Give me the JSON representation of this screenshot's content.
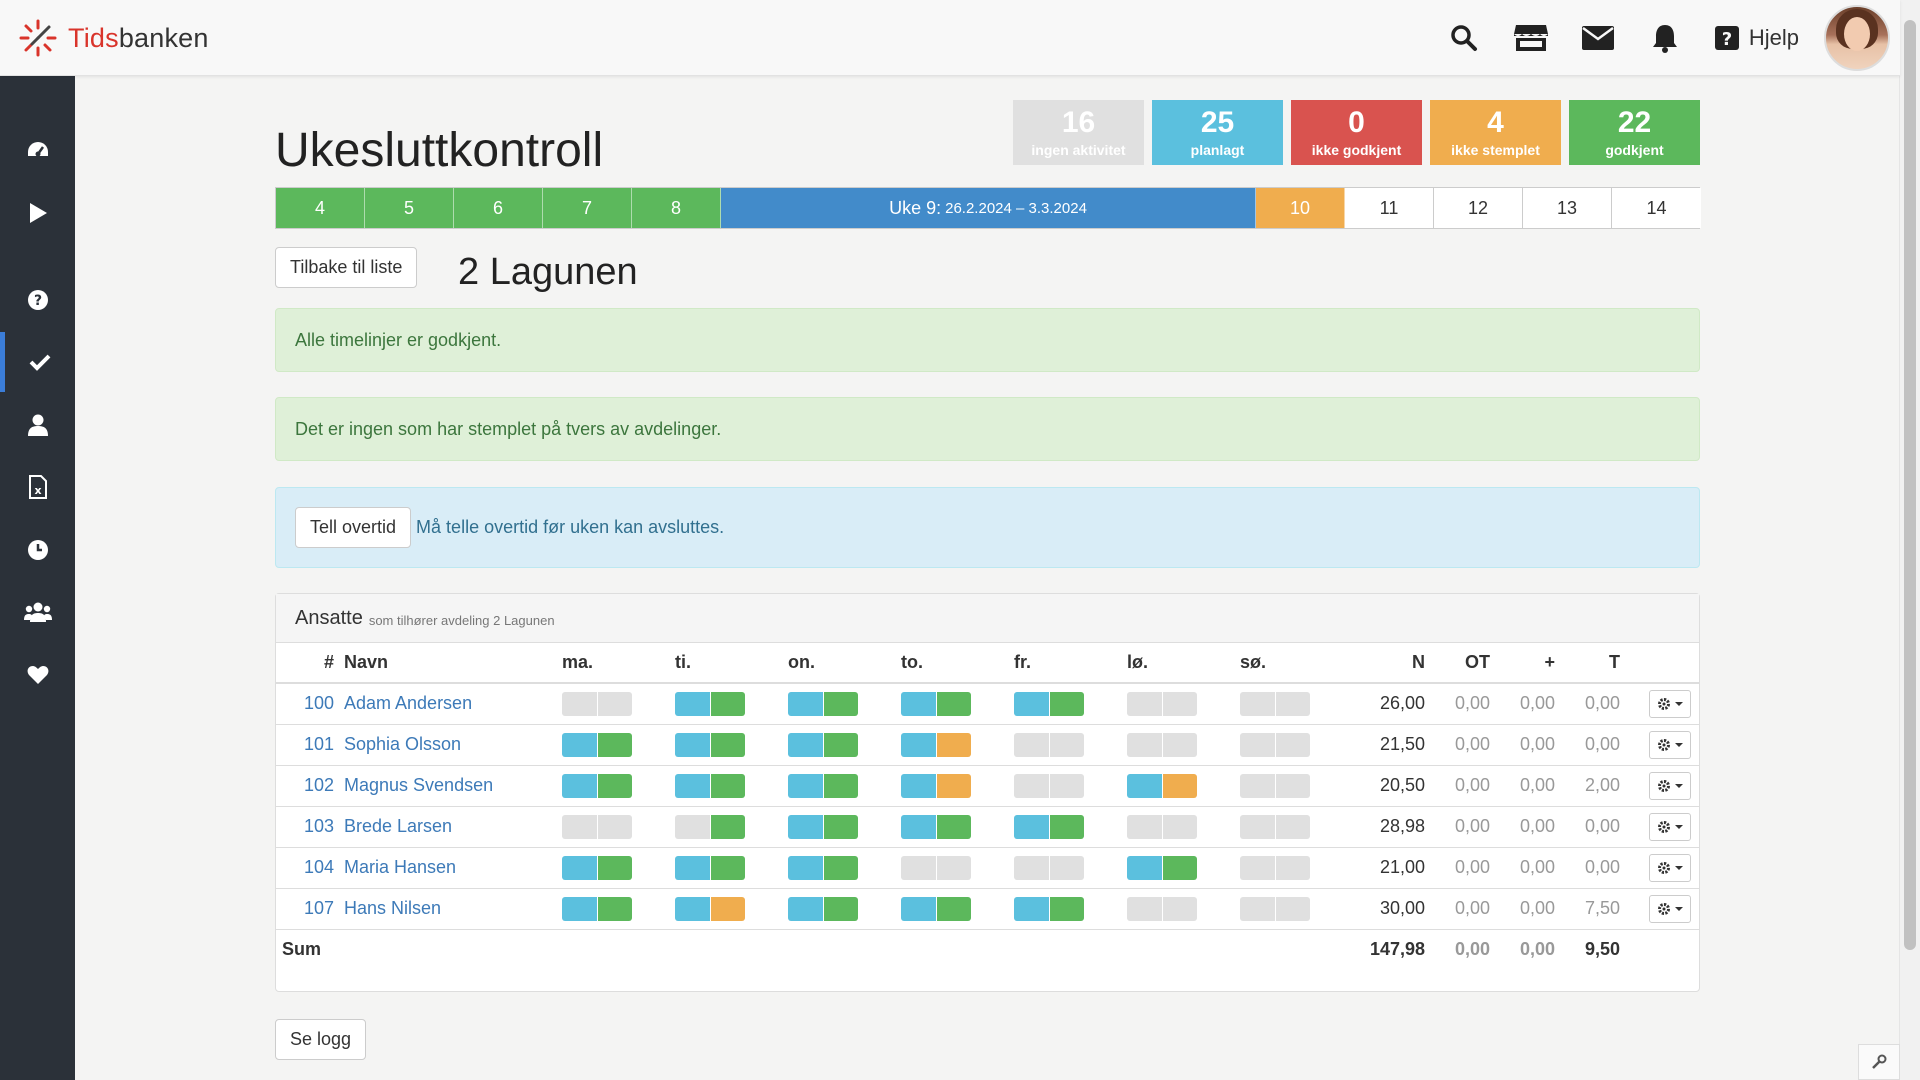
{
  "header": {
    "logo_part1": "Tids",
    "logo_part2": "banken",
    "help_label": "Hjelp",
    "icons": [
      "search-icon",
      "store-icon",
      "mail-icon",
      "bell-icon",
      "question-icon"
    ]
  },
  "sidebar": {
    "items": [
      {
        "name": "dashboard-icon"
      },
      {
        "name": "play-icon"
      },
      {
        "name": "help-circle-icon"
      },
      {
        "name": "check-icon",
        "active": true
      },
      {
        "name": "user-icon"
      },
      {
        "name": "excel-file-icon"
      },
      {
        "name": "clock-icon"
      },
      {
        "name": "users-icon"
      },
      {
        "name": "heart-icon"
      }
    ]
  },
  "page": {
    "title": "Ukesluttkontroll",
    "department": "2 Lagunen",
    "back_button": "Tilbake til liste",
    "log_button": "Se logg"
  },
  "stats": [
    {
      "value": "16",
      "label": "ingen aktivitet",
      "color": "#e0e0e0"
    },
    {
      "value": "25",
      "label": "planlagt",
      "color": "#5bc0de"
    },
    {
      "value": "0",
      "label": "ikke godkjent",
      "color": "#d9534f"
    },
    {
      "value": "4",
      "label": "ikke stemplet",
      "color": "#f0ad4e"
    },
    {
      "value": "22",
      "label": "godkjent",
      "color": "#5cb85c"
    }
  ],
  "weeks": {
    "before": [
      "4",
      "5",
      "6",
      "7",
      "8"
    ],
    "current_label": "Uke 9:",
    "current_range": "26.2.2024 – 3.3.2024",
    "warn": "10",
    "after": [
      "11",
      "12",
      "13",
      "14"
    ]
  },
  "alerts": {
    "timelines": "Alle timelinjer er godkjent.",
    "cross_dept": "Det er ingen som har stemplet på tvers av avdelinger.",
    "overtime_button": "Tell overtid",
    "overtime_text": "Må telle overtid før uken kan avsluttes."
  },
  "panel": {
    "title": "Ansatte",
    "subtitle": "som tilhører avdeling 2 Lagunen"
  },
  "table": {
    "headers": {
      "num": "#",
      "name": "Navn",
      "days": [
        "ma.",
        "ti.",
        "on.",
        "to.",
        "fr.",
        "lø.",
        "sø."
      ],
      "n": "N",
      "ot": "OT",
      "plus": "+",
      "t": "T"
    },
    "rows": [
      {
        "num": "100",
        "name": "Adam Andersen",
        "days": [
          [
            "gray",
            "gray"
          ],
          [
            "blue",
            "green"
          ],
          [
            "blue",
            "green"
          ],
          [
            "blue",
            "green"
          ],
          [
            "blue",
            "green"
          ],
          [
            "gray",
            "gray"
          ],
          [
            "gray",
            "gray"
          ]
        ],
        "n": "26,00",
        "ot": "0,00",
        "plus": "0,00",
        "t": "0,00"
      },
      {
        "num": "101",
        "name": "Sophia Olsson",
        "days": [
          [
            "blue",
            "green"
          ],
          [
            "blue",
            "green"
          ],
          [
            "blue",
            "green"
          ],
          [
            "blue",
            "orange"
          ],
          [
            "gray",
            "gray"
          ],
          [
            "gray",
            "gray"
          ],
          [
            "gray",
            "gray"
          ]
        ],
        "n": "21,50",
        "ot": "0,00",
        "plus": "0,00",
        "t": "0,00"
      },
      {
        "num": "102",
        "name": "Magnus Svendsen",
        "days": [
          [
            "blue",
            "green"
          ],
          [
            "blue",
            "green"
          ],
          [
            "blue",
            "green"
          ],
          [
            "blue",
            "orange"
          ],
          [
            "gray",
            "gray"
          ],
          [
            "blue",
            "orange"
          ],
          [
            "gray",
            "gray"
          ]
        ],
        "n": "20,50",
        "ot": "0,00",
        "plus": "0,00",
        "t": "2,00"
      },
      {
        "num": "103",
        "name": "Brede Larsen",
        "days": [
          [
            "gray",
            "gray"
          ],
          [
            "gray",
            "green"
          ],
          [
            "blue",
            "green"
          ],
          [
            "blue",
            "green"
          ],
          [
            "blue",
            "green"
          ],
          [
            "gray",
            "gray"
          ],
          [
            "gray",
            "gray"
          ]
        ],
        "n": "28,98",
        "ot": "0,00",
        "plus": "0,00",
        "t": "0,00"
      },
      {
        "num": "104",
        "name": "Maria Hansen",
        "days": [
          [
            "blue",
            "green"
          ],
          [
            "blue",
            "green"
          ],
          [
            "blue",
            "green"
          ],
          [
            "gray",
            "gray"
          ],
          [
            "gray",
            "gray"
          ],
          [
            "blue",
            "green"
          ],
          [
            "gray",
            "gray"
          ]
        ],
        "n": "21,00",
        "ot": "0,00",
        "plus": "0,00",
        "t": "0,00"
      },
      {
        "num": "107",
        "name": "Hans Nilsen",
        "days": [
          [
            "blue",
            "green"
          ],
          [
            "blue",
            "orange"
          ],
          [
            "blue",
            "green"
          ],
          [
            "blue",
            "green"
          ],
          [
            "blue",
            "green"
          ],
          [
            "gray",
            "gray"
          ],
          [
            "gray",
            "gray"
          ]
        ],
        "n": "30,00",
        "ot": "0,00",
        "plus": "0,00",
        "t": "7,50"
      }
    ],
    "sum": {
      "label": "Sum",
      "n": "147,98",
      "ot": "0,00",
      "plus": "0,00",
      "t": "9,50"
    }
  }
}
